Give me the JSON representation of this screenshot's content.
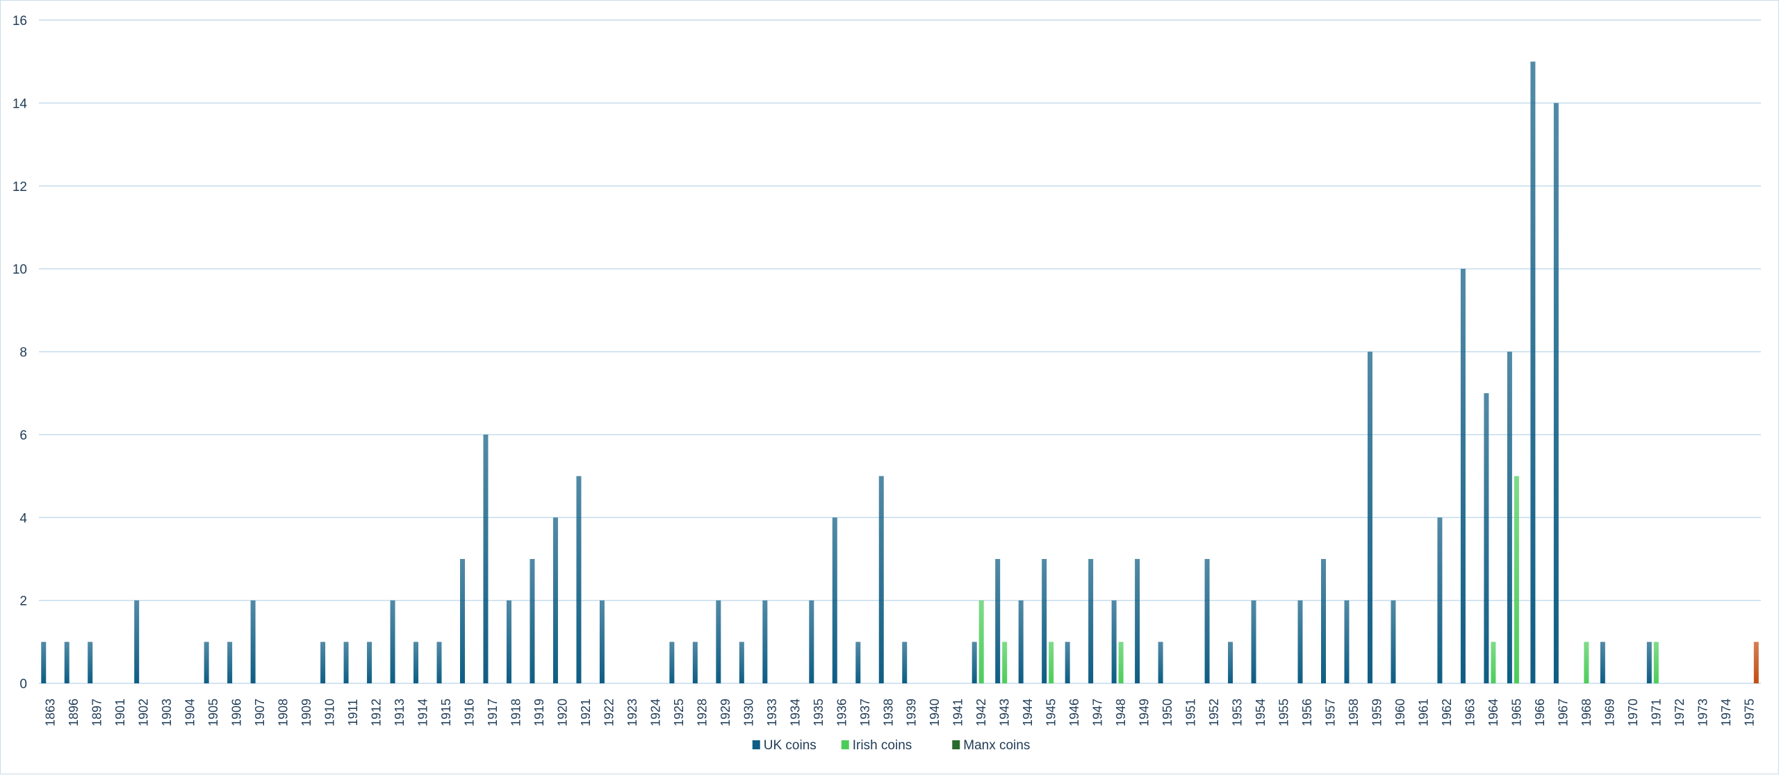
{
  "chart_data": {
    "type": "bar",
    "categories": [
      "1863",
      "1896",
      "1897",
      "1901",
      "1902",
      "1903",
      "1904",
      "1905",
      "1906",
      "1907",
      "1908",
      "1909",
      "1910",
      "1911",
      "1912",
      "1913",
      "1914",
      "1915",
      "1916",
      "1917",
      "1918",
      "1919",
      "1920",
      "1921",
      "1922",
      "1923",
      "1924",
      "1925",
      "1928",
      "1929",
      "1930",
      "1933",
      "1934",
      "1935",
      "1936",
      "1937",
      "1938",
      "1939",
      "1940",
      "1941",
      "1942",
      "1943",
      "1944",
      "1945",
      "1946",
      "1947",
      "1948",
      "1949",
      "1950",
      "1951",
      "1952",
      "1953",
      "1954",
      "1955",
      "1956",
      "1957",
      "1958",
      "1959",
      "1960",
      "1961",
      "1962",
      "1963",
      "1964",
      "1965",
      "1966",
      "1967",
      "1968",
      "1969",
      "1970",
      "1971",
      "1972",
      "1973",
      "1974",
      "1975"
    ],
    "series": [
      {
        "name": "UK coins",
        "color": "#0e5d84",
        "values": [
          1,
          1,
          1,
          0,
          2,
          0,
          0,
          1,
          1,
          2,
          0,
          0,
          1,
          1,
          1,
          2,
          1,
          1,
          3,
          6,
          2,
          3,
          4,
          5,
          2,
          0,
          0,
          1,
          1,
          2,
          1,
          2,
          0,
          2,
          4,
          1,
          5,
          1,
          0,
          0,
          1,
          3,
          2,
          3,
          1,
          3,
          2,
          3,
          1,
          0,
          3,
          1,
          2,
          0,
          2,
          3,
          2,
          8,
          2,
          0,
          4,
          10,
          7,
          8,
          15,
          14,
          0,
          1,
          0,
          1,
          0,
          0,
          0,
          0
        ]
      },
      {
        "name": "Irish coins",
        "color": "#4ccd5a",
        "values": [
          0,
          0,
          0,
          0,
          0,
          0,
          0,
          0,
          0,
          0,
          0,
          0,
          0,
          0,
          0,
          0,
          0,
          0,
          0,
          0,
          0,
          0,
          0,
          0,
          0,
          0,
          0,
          0,
          0,
          0,
          0,
          0,
          0,
          0,
          0,
          0,
          0,
          0,
          0,
          0,
          2,
          1,
          0,
          1,
          0,
          0,
          1,
          0,
          0,
          0,
          0,
          0,
          0,
          0,
          0,
          0,
          0,
          0,
          0,
          0,
          0,
          0,
          1,
          5,
          0,
          0,
          1,
          0,
          0,
          1,
          0,
          0,
          0,
          0
        ]
      },
      {
        "name": "Manx coins",
        "color": "#c24d12",
        "legend_color": "#2a6b2e",
        "values": [
          0,
          0,
          0,
          0,
          0,
          0,
          0,
          0,
          0,
          0,
          0,
          0,
          0,
          0,
          0,
          0,
          0,
          0,
          0,
          0,
          0,
          0,
          0,
          0,
          0,
          0,
          0,
          0,
          0,
          0,
          0,
          0,
          0,
          0,
          0,
          0,
          0,
          0,
          0,
          0,
          0,
          0,
          0,
          0,
          0,
          0,
          0,
          0,
          0,
          0,
          0,
          0,
          0,
          0,
          0,
          0,
          0,
          0,
          0,
          0,
          0,
          0,
          0,
          0,
          0,
          0,
          0,
          0,
          0,
          0,
          0,
          0,
          0,
          1
        ]
      }
    ],
    "y_ticks": [
      "0",
      "2",
      "4",
      "6",
      "8",
      "10",
      "12",
      "14",
      "16"
    ],
    "ylim": [
      0,
      16
    ],
    "grid": true,
    "legend_position": "bottom-center",
    "xtick_rotation": "vertical"
  }
}
